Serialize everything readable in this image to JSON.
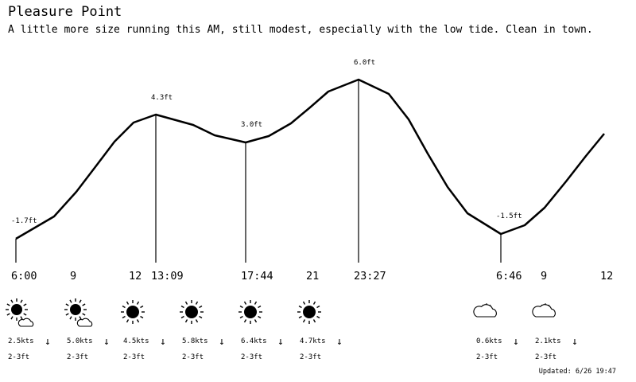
{
  "header": {
    "title": "Pleasure Point",
    "subtitle": "A little more size running this AM, still modest, especially with the low tide. Clean in town."
  },
  "tide": {
    "events": [
      {
        "time": "6:00",
        "height_ft": -1.7,
        "label": "-1.7ft"
      },
      {
        "time": "13:09",
        "height_ft": 4.3,
        "label": "4.3ft"
      },
      {
        "time": "17:44",
        "height_ft": 3.0,
        "label": "3.0ft"
      },
      {
        "time": "23:27",
        "height_ft": 6.0,
        "label": "6.0ft"
      },
      {
        "time": "6:46",
        "height_ft": -1.5,
        "label": "-1.5ft"
      }
    ],
    "hour_ticks": [
      "9",
      "12",
      "21",
      "9",
      "12"
    ]
  },
  "forecast": [
    {
      "icon": "sun-cloud-icon",
      "wind": "2.5kts",
      "wind_dir": "↓",
      "waves": "2-3ft"
    },
    {
      "icon": "sun-cloud-icon",
      "wind": "5.0kts",
      "wind_dir": "↓",
      "waves": "2-3ft"
    },
    {
      "icon": "sun-icon",
      "wind": "4.5kts",
      "wind_dir": "↓",
      "waves": "2-3ft"
    },
    {
      "icon": "sun-icon",
      "wind": "5.8kts",
      "wind_dir": "↓",
      "waves": "2-3ft"
    },
    {
      "icon": "sun-icon",
      "wind": "6.4kts",
      "wind_dir": "↓",
      "waves": "2-3ft"
    },
    {
      "icon": "sun-icon",
      "wind": "4.7kts",
      "wind_dir": "↓",
      "waves": "2-3ft"
    },
    {
      "icon": "partly-cloudy-icon",
      "wind": "0.6kts",
      "wind_dir": "↓",
      "waves": "2-3ft"
    },
    {
      "icon": "partly-cloudy-icon",
      "wind": "2.1kts",
      "wind_dir": "↓",
      "waves": "2-3ft"
    }
  ],
  "footer": {
    "updated": "Updated: 6/26 19:47"
  }
}
